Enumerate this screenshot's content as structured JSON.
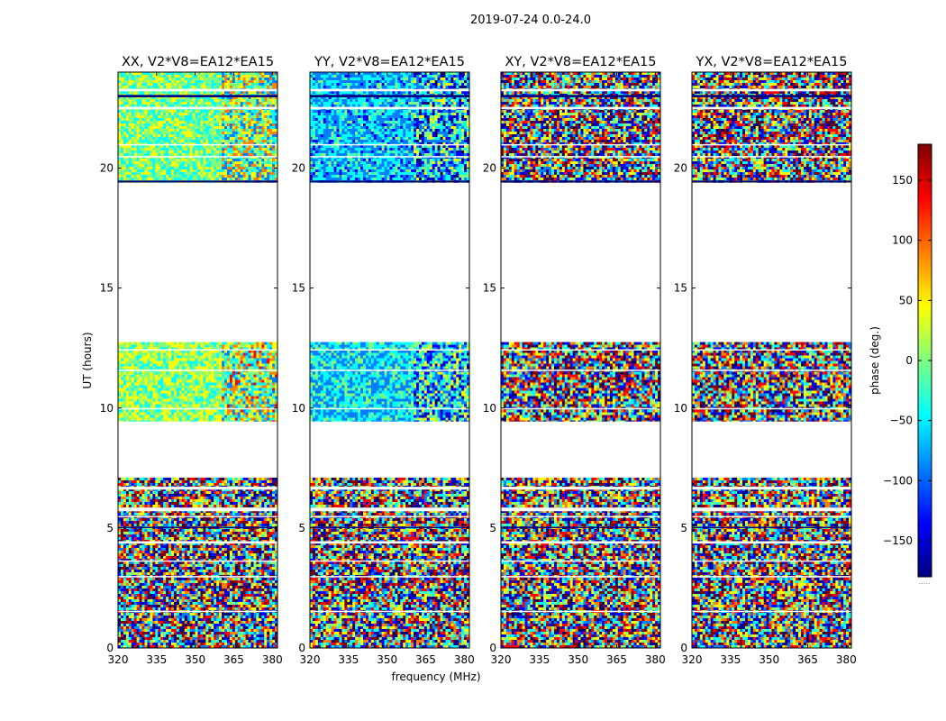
{
  "figure": {
    "suptitle": "2019-07-24 0.0-24.0"
  },
  "chart_data": {
    "type": "heatmap",
    "xlabel": "frequency (MHz)",
    "ylabel": "UT (hours)",
    "xlim": [
      320,
      382
    ],
    "ylim": [
      0,
      24
    ],
    "xticks": [
      320,
      335,
      350,
      365,
      380
    ],
    "yticks": [
      0,
      5,
      10,
      15,
      20
    ],
    "colorbar": {
      "label": "phase (deg.)",
      "range": [
        -180,
        180
      ],
      "ticks": [
        -150,
        -100,
        -50,
        0,
        50,
        100,
        150
      ],
      "colormap": [
        "#00007f",
        "#0000ff",
        "#007fff",
        "#00ffff",
        "#7fff7f",
        "#ffff00",
        "#ff7f00",
        "#ff0000",
        "#7f0000"
      ],
      "tick_labels": [
        "−150",
        "−100",
        "−50",
        "0",
        "50",
        "100",
        "150"
      ],
      "footer": "....."
    },
    "observed_time_blocks_hours": [
      [
        0,
        7.1
      ],
      [
        9.45,
        12.75
      ],
      [
        19.4,
        24
      ]
    ],
    "panels": [
      {
        "title": "XX, V2*V8=EA12*EA15",
        "polarization": "XX",
        "coherent_phase_during_day": true
      },
      {
        "title": "YY, V2*V8=EA12*EA15",
        "polarization": "YY",
        "coherent_phase_during_day": true
      },
      {
        "title": "XY, V2*V8=EA12*EA15",
        "polarization": "XY",
        "coherent_phase_during_day": false
      },
      {
        "title": "YX, V2*V8=EA12*EA15",
        "polarization": "YX",
        "coherent_phase_during_day": false
      }
    ]
  }
}
